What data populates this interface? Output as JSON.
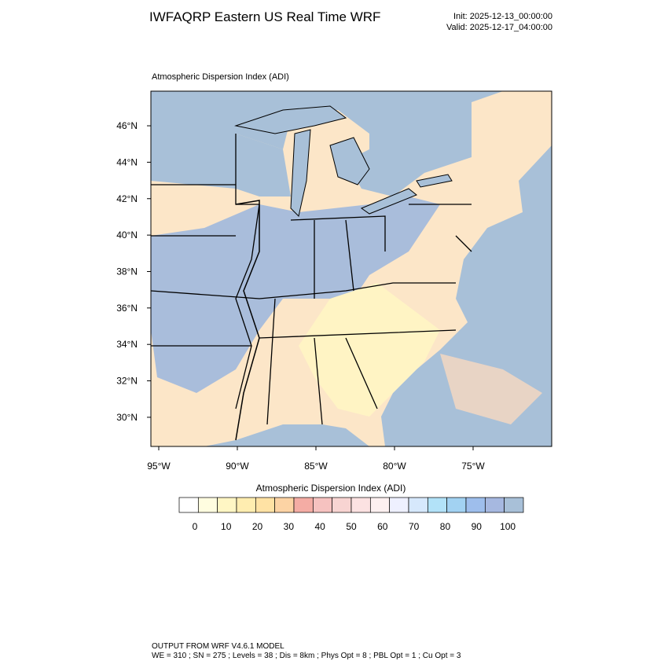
{
  "header": {
    "title": "IWFAQRP Eastern US Real Time WRF",
    "init": "Init: 2025-12-13_00:00:00",
    "valid": "Valid: 2025-12-17_04:00:00"
  },
  "map": {
    "title": "Atmospheric Dispersion Index   (ADI)",
    "xlim": [
      -95.5,
      -70
    ],
    "ylim": [
      28.4,
      47.9
    ],
    "xticks": [
      {
        "value": -95,
        "label": "95°W"
      },
      {
        "value": -90,
        "label": "90°W"
      },
      {
        "value": -85,
        "label": "85°W"
      },
      {
        "value": -80,
        "label": "80°W"
      },
      {
        "value": -75,
        "label": "75°W"
      }
    ],
    "yticks": [
      {
        "value": 30,
        "label": "30°N"
      },
      {
        "value": 32,
        "label": "32°N"
      },
      {
        "value": 34,
        "label": "34°N"
      },
      {
        "value": 36,
        "label": "36°N"
      },
      {
        "value": 38,
        "label": "38°N"
      },
      {
        "value": 40,
        "label": "40°N"
      },
      {
        "value": 42,
        "label": "42°N"
      },
      {
        "value": 44,
        "label": "44°N"
      },
      {
        "value": 46,
        "label": "46°N"
      }
    ]
  },
  "colorbar": {
    "title": "Atmospheric Dispersion Index  (ADI)",
    "lim": [
      -5,
      105
    ],
    "ticks": [
      0,
      10,
      20,
      30,
      40,
      50,
      60,
      70,
      80,
      90,
      100
    ],
    "colors": [
      "#ffffff",
      "#fffde0",
      "#fff6c4",
      "#ffedb0",
      "#ffe2a4",
      "#fcd3a4",
      "#f4aca4",
      "#f6c2c0",
      "#f8d4d2",
      "#fce2e2",
      "#fdf0f0",
      "#eef0ff",
      "#d6e8fc",
      "#b2e2f8",
      "#a2d2f2",
      "#9ebeec",
      "#a6b8e0",
      "#a8c0d8"
    ]
  },
  "footer": {
    "line1": "OUTPUT FROM WRF V4.6.1 MODEL",
    "line2": "WE = 310 ; SN = 275 ; Levels = 38 ; Dis = 8km ; Phys Opt = 8 ; PBL Opt = 1 ; Cu Opt = 3"
  }
}
